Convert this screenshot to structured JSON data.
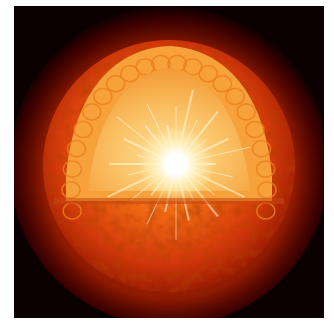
{
  "image": {
    "subject": "sun-cutaway",
    "colors": {
      "space": "#0a0000",
      "corona_outer": "#5a0000",
      "photosphere_dark": "#8f1400",
      "photosphere": "#e0420a",
      "photosphere_light": "#ff8a2a",
      "convective_zone": "#f7a13a",
      "radiative_zone": "#fbc56a",
      "core": "#ffffff",
      "core_glow": "#fff1b8"
    }
  }
}
